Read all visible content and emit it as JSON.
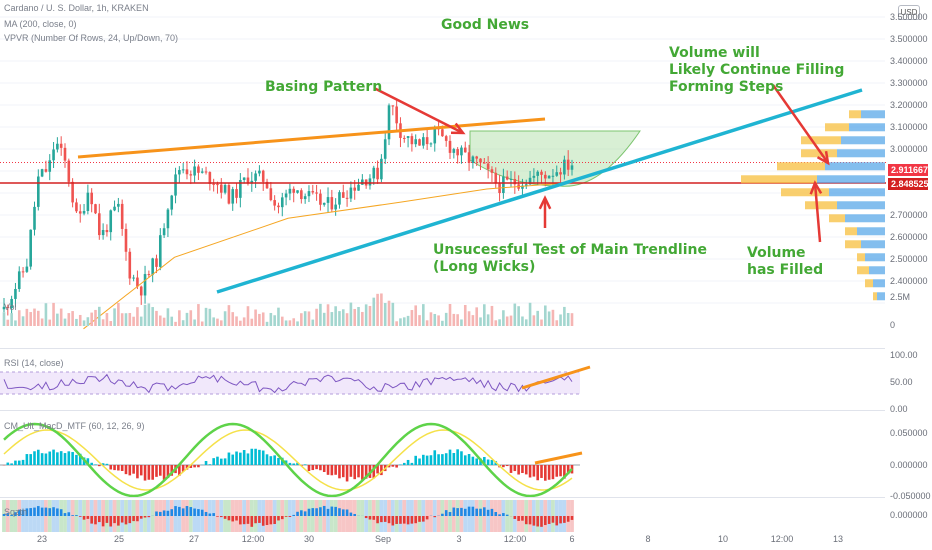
{
  "header": {
    "symbol": "Cardano / U. S. Dollar, 1h, KRAKEN",
    "ma": "MA (200, close, 0)",
    "vpvr": "VPVR (Number Of Rows, 24, Up/Down, 70)",
    "currency_button": "USD"
  },
  "panes": {
    "volume_label": "Vol",
    "rsi_label": "RSI (14, close)",
    "macd_label": "CM_Ult_MacD_MTF (60, 12, 26, 9)",
    "sqz_label": "Sqzth"
  },
  "annotations": {
    "title": "Good News",
    "basing": "Basing Pattern",
    "volume_will_1": "Volume will",
    "volume_will_2": "Likely Continue Filling",
    "volume_will_3": "Forming Steps",
    "trendline_1": "Unsucessful Test of Main Trendline",
    "trendline_2": "(Long Wicks)",
    "filled_1": "Volume",
    "filled_2": "has Filled"
  },
  "price_axis": [
    "3.500000",
    "3.400000",
    "3.300000",
    "3.200000",
    "3.100000",
    "3.000000",
    "2.700000",
    "2.600000",
    "2.500000",
    "2.400000"
  ],
  "volume_axis": [
    "2.5M",
    "0"
  ],
  "rsi_axis": [
    "100.00",
    "50.00",
    "0.00"
  ],
  "macd_axis": [
    "0.050000",
    "0.000000",
    "-0.050000"
  ],
  "sqz_axis": [
    "0.000000"
  ],
  "badges": [
    {
      "label": "2.911667",
      "color": "#f23645"
    },
    {
      "label": "2.848525",
      "color": "#d32020"
    }
  ],
  "time_axis": [
    "23",
    "25",
    "27",
    "12:00",
    "30",
    "Sep",
    "3",
    "12:00",
    "6",
    "8",
    "10",
    "12:00",
    "13"
  ],
  "colors": {
    "up": "#26a69a",
    "down": "#ef5350",
    "trend_orange": "#f7931a",
    "trend_cyan": "#1fb4d2",
    "annot_green": "#43a835",
    "arrow_red": "#e53935",
    "ma_orange": "#f5a623",
    "vp_up": "#5aa8e8",
    "vp_down": "#f7c34a"
  },
  "chart_data": {
    "type": "candlestick",
    "title": "Cardano / U. S. Dollar, 1h, KRAKEN",
    "ylim": [
      2.4,
      3.55
    ],
    "x_ticks": [
      "23",
      "25",
      "27",
      "12:00",
      "30",
      "Sep",
      "3",
      "12:00",
      "6",
      "8",
      "10",
      "12:00",
      "13"
    ],
    "close_path": [
      {
        "t": 0,
        "p": 2.46
      },
      {
        "t": 0.04,
        "p": 2.6
      },
      {
        "t": 0.06,
        "p": 2.86
      },
      {
        "t": 0.08,
        "p": 2.9
      },
      {
        "t": 0.09,
        "p": 2.98
      },
      {
        "t": 0.11,
        "p": 2.9
      },
      {
        "t": 0.13,
        "p": 2.72
      },
      {
        "t": 0.15,
        "p": 2.84
      },
      {
        "t": 0.17,
        "p": 2.68
      },
      {
        "t": 0.2,
        "p": 2.78
      },
      {
        "t": 0.22,
        "p": 2.58
      },
      {
        "t": 0.24,
        "p": 2.52
      },
      {
        "t": 0.27,
        "p": 2.62
      },
      {
        "t": 0.29,
        "p": 2.8
      },
      {
        "t": 0.31,
        "p": 2.9
      },
      {
        "t": 0.34,
        "p": 2.88
      },
      {
        "t": 0.37,
        "p": 2.86
      },
      {
        "t": 0.4,
        "p": 2.8
      },
      {
        "t": 0.43,
        "p": 2.87
      },
      {
        "t": 0.46,
        "p": 2.86
      },
      {
        "t": 0.48,
        "p": 2.77
      },
      {
        "t": 0.51,
        "p": 2.84
      },
      {
        "t": 0.54,
        "p": 2.8
      },
      {
        "t": 0.57,
        "p": 2.78
      },
      {
        "t": 0.6,
        "p": 2.82
      },
      {
        "t": 0.63,
        "p": 2.86
      },
      {
        "t": 0.66,
        "p": 2.88
      },
      {
        "t": 0.68,
        "p": 3.1
      },
      {
        "t": 0.7,
        "p": 3.0
      },
      {
        "t": 0.73,
        "p": 2.96
      },
      {
        "t": 0.76,
        "p": 3.0
      },
      {
        "t": 0.8,
        "p": 2.94
      },
      {
        "t": 0.84,
        "p": 2.9
      },
      {
        "t": 0.87,
        "p": 2.84
      },
      {
        "t": 0.92,
        "p": 2.86
      },
      {
        "t": 0.96,
        "p": 2.88
      },
      {
        "t": 1.0,
        "p": 2.91
      }
    ],
    "ma_200": [
      {
        "t": 0.14,
        "p": 2.4
      },
      {
        "t": 0.3,
        "p": 2.62
      },
      {
        "t": 0.5,
        "p": 2.74
      },
      {
        "t": 0.7,
        "p": 2.79
      },
      {
        "t": 0.85,
        "p": 2.83
      },
      {
        "t": 1.0,
        "p": 2.85
      }
    ],
    "last_price": 2.911667,
    "poc_price": 2.848525,
    "volume_profile": [
      {
        "price": 3.06,
        "up": 0.3,
        "down": 0.15
      },
      {
        "price": 3.02,
        "up": 0.45,
        "down": 0.3
      },
      {
        "price": 2.98,
        "up": 0.55,
        "down": 0.5
      },
      {
        "price": 2.94,
        "up": 0.6,
        "down": 0.45
      },
      {
        "price": 2.9,
        "up": 0.75,
        "down": 0.6
      },
      {
        "price": 2.86,
        "up": 0.85,
        "down": 0.95
      },
      {
        "price": 2.82,
        "up": 0.7,
        "down": 0.6
      },
      {
        "price": 2.78,
        "up": 0.6,
        "down": 0.4
      },
      {
        "price": 2.74,
        "up": 0.5,
        "down": 0.2
      },
      {
        "price": 2.7,
        "up": 0.35,
        "down": 0.15
      },
      {
        "price": 2.66,
        "up": 0.3,
        "down": 0.2
      },
      {
        "price": 2.62,
        "up": 0.25,
        "down": 0.1
      },
      {
        "price": 2.58,
        "up": 0.2,
        "down": 0.15
      },
      {
        "price": 2.54,
        "up": 0.15,
        "down": 0.1
      },
      {
        "price": 2.5,
        "up": 0.1,
        "down": 0.05
      }
    ]
  }
}
